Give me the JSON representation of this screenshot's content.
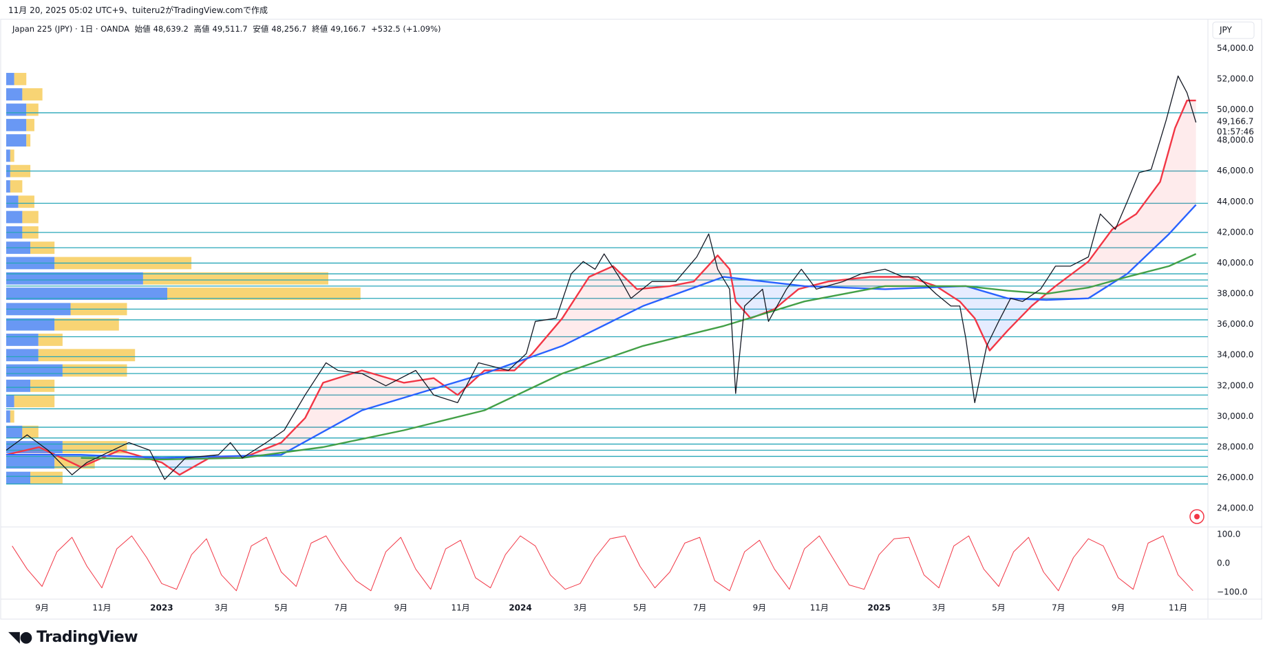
{
  "header": {
    "attribution": "11月 20, 2025 05:02 UTC+9、tuiteru2がTradingView.comで作成",
    "symbol": "Japan 225 (JPY) · 1日 · OANDA",
    "ohlc": [
      {
        "label": "始値",
        "value": "48,639.2"
      },
      {
        "label": "高値",
        "value": "49,511.7"
      },
      {
        "label": "安値",
        "value": "48,256.7"
      },
      {
        "label": "終値",
        "value": "49,166.7"
      }
    ],
    "change": "+532.5 (+1.09%)"
  },
  "chart_data": [
    {
      "type": "line",
      "currency": "JPY",
      "color": "#131722",
      "x": [
        -1.2,
        -0.5,
        0.2,
        1.0,
        1.5,
        2.9,
        3.6,
        4.1,
        4.8,
        5.9,
        6.3,
        6.7,
        7.5,
        8.1,
        8.8,
        9.5,
        9.9,
        10.7,
        11.5,
        12.5,
        13.1,
        13.9,
        14.6,
        15.6,
        16.2,
        16.5,
        17.2,
        17.7,
        18.1,
        18.5,
        18.8,
        19.3,
        19.7,
        20.4,
        21.2,
        21.9,
        22.3,
        22.6,
        23.0,
        23.2,
        23.5,
        24.1,
        24.3,
        24.9,
        25.4,
        25.9,
        26.8,
        27.4,
        28.2,
        28.8,
        29.3,
        29.9,
        30.4,
        30.7,
        30.9,
        31.2,
        31.6,
        32.0,
        32.4,
        32.8,
        33.4,
        33.9,
        34.4,
        35.0,
        35.4,
        35.9,
        36.3,
        36.7,
        37.1,
        37.4,
        37.6,
        38.0,
        38.3,
        38.6
      ],
      "values": [
        27800,
        28800,
        27800,
        26200,
        27000,
        28300,
        27800,
        25900,
        27300,
        27500,
        28300,
        27300,
        28300,
        29100,
        31400,
        33500,
        33000,
        32800,
        32000,
        33000,
        31400,
        30900,
        33500,
        33000,
        34100,
        36200,
        36400,
        39300,
        40100,
        39600,
        40600,
        39100,
        37700,
        38800,
        38800,
        40400,
        41900,
        39600,
        38300,
        31500,
        37200,
        38300,
        36200,
        38300,
        39600,
        38300,
        38800,
        39300,
        39600,
        39100,
        39100,
        38000,
        37200,
        37200,
        35100,
        30900,
        34600,
        36200,
        37700,
        37500,
        38300,
        39800,
        39800,
        40400,
        43200,
        42200,
        44000,
        45900,
        46100,
        48000,
        49300,
        52200,
        51100,
        49166.7
      ],
      "series": [
        {
          "color": "#f23645",
          "x": [
            -1.2,
            -0.1,
            1.3,
            2.6,
            4.0,
            4.6,
            5.6,
            6.7,
            8.0,
            8.8,
            9.4,
            10.7,
            12.1,
            13.1,
            13.9,
            14.8,
            15.8,
            16.4,
            17.4,
            18.3,
            19.1,
            19.9,
            21.0,
            21.8,
            22.6,
            23.0,
            23.2,
            23.7,
            24.5,
            25.3,
            26.3,
            27.7,
            29.0,
            29.9,
            30.7,
            31.2,
            31.7,
            32.3,
            33.1,
            33.9,
            35.0,
            35.8,
            36.6,
            37.4,
            37.9,
            38.3,
            38.6
          ],
          "values": [
            27500,
            28000,
            26700,
            27800,
            27000,
            26200,
            27300,
            27300,
            28300,
            29900,
            32200,
            33000,
            32200,
            32500,
            31400,
            33000,
            33000,
            34100,
            36400,
            39100,
            39800,
            38300,
            38500,
            38800,
            40500,
            39600,
            37500,
            36400,
            37000,
            38300,
            38800,
            39100,
            39100,
            38500,
            37500,
            36400,
            34300,
            35600,
            37200,
            38500,
            40100,
            42200,
            43200,
            45300,
            48800,
            50600,
            50600
          ]
        },
        {
          "color": "#2962ff",
          "x": [
            -1.2,
            1.3,
            4.0,
            8.0,
            10.7,
            14.8,
            17.4,
            20.1,
            22.8,
            25.5,
            28.2,
            30.9,
            32.3,
            33.6,
            35.0,
            36.3,
            37.7,
            38.6
          ],
          "values": [
            27500,
            27500,
            27300,
            27500,
            30400,
            32800,
            34600,
            37200,
            39100,
            38500,
            38300,
            38500,
            37700,
            37600,
            37700,
            39300,
            41900,
            43800
          ]
        },
        {
          "color": "#43a047",
          "x": [
            1.3,
            4.0,
            6.7,
            9.4,
            12.1,
            14.8,
            17.4,
            20.1,
            22.8,
            25.5,
            28.2,
            30.9,
            32.3,
            33.6,
            35.0,
            36.3,
            37.7,
            38.6
          ],
          "values": [
            27300,
            27200,
            27300,
            28000,
            29100,
            30400,
            32800,
            34600,
            35900,
            37500,
            38500,
            38500,
            38200,
            38000,
            38400,
            39100,
            39800,
            40600
          ]
        }
      ],
      "levels": [
        49800,
        46000,
        43900,
        42000,
        41000,
        40000,
        39300,
        38900,
        38500,
        37700,
        37000,
        36300,
        35200,
        33900,
        33200,
        32800,
        31900,
        31400,
        30500,
        29300,
        28600,
        28200,
        27800,
        27400,
        26700,
        26100,
        25600
      ],
      "level_color": "#26a6b8",
      "volume_profile": {
        "rows": [
          52000,
          51000,
          50000,
          49000,
          48000,
          47000,
          46000,
          45000,
          44000,
          43000,
          42000,
          41000,
          40000,
          39000,
          38000,
          37000,
          36000,
          35000,
          34000,
          33000,
          32000,
          31000,
          30000,
          29000,
          28000,
          27000,
          26000
        ],
        "series": [
          {
            "color": "#4f86f2",
            "values": [
              10,
              20,
              25,
              25,
              25,
              5,
              5,
              5,
              15,
              20,
              20,
              30,
              60,
              170,
              200,
              80,
              60,
              40,
              40,
              70,
              30,
              10,
              5,
              20,
              70,
              60,
              30
            ]
          },
          {
            "color": "#f7cc5c",
            "values": [
              15,
              25,
              15,
              10,
              5,
              5,
              25,
              15,
              20,
              20,
              20,
              30,
              170,
              230,
              240,
              70,
              80,
              30,
              120,
              80,
              30,
              50,
              5,
              20,
              80,
              50,
              40
            ]
          }
        ]
      },
      "ylim": [
        22800,
        54550
      ],
      "yticks": [
        {
          "value": 24000,
          "label": "24,000.0"
        },
        {
          "value": 26000,
          "label": "26,000.0"
        },
        {
          "value": 28000,
          "label": "28,000.0"
        },
        {
          "value": 30000,
          "label": "30,000.0"
        },
        {
          "value": 32000,
          "label": "32,000.0"
        },
        {
          "value": 34000,
          "label": "34,000.0"
        },
        {
          "value": 36000,
          "label": "36,000.0"
        },
        {
          "value": 38000,
          "label": "38,000.0"
        },
        {
          "value": 40000,
          "label": "40,000.0"
        },
        {
          "value": 42000,
          "label": "42,000.0"
        },
        {
          "value": 44000,
          "label": "44,000.0"
        },
        {
          "value": 46000,
          "label": "46,000.0"
        },
        {
          "value": 48000,
          "label": "48,000.0"
        },
        {
          "value": 50000,
          "label": "50,000.0"
        },
        {
          "value": 52000,
          "label": "52,000.0"
        },
        {
          "value": 54000,
          "label": "54,000.0"
        }
      ],
      "last_price": {
        "value": 49166.7,
        "label": "49,166.7"
      },
      "countdown": "01:57:46",
      "xlim": [
        -1.2,
        39.0
      ]
    },
    {
      "type": "line",
      "color": "#f23645",
      "x": [
        -1,
        -0.5,
        0,
        0.5,
        1,
        1.5,
        2,
        2.5,
        3,
        3.5,
        4,
        4.5,
        5,
        5.5,
        6,
        6.5,
        7,
        7.5,
        8,
        8.5,
        9,
        9.5,
        10,
        10.5,
        11,
        11.5,
        12,
        12.5,
        13,
        13.5,
        14,
        14.5,
        15,
        15.5,
        16,
        16.5,
        17,
        17.5,
        18,
        18.5,
        19,
        19.5,
        20,
        20.5,
        21,
        21.5,
        22,
        22.5,
        23,
        23.5,
        24,
        24.5,
        25,
        25.5,
        26,
        26.5,
        27,
        27.5,
        28,
        28.5,
        29,
        29.5,
        30,
        30.5,
        31,
        31.5,
        32,
        32.5,
        33,
        33.5,
        34,
        34.5,
        35,
        35.5,
        36,
        36.5,
        37,
        37.5,
        38,
        38.5
      ],
      "values": [
        60,
        -20,
        -80,
        40,
        90,
        -10,
        -85,
        50,
        95,
        20,
        -70,
        -90,
        30,
        85,
        -40,
        -95,
        60,
        90,
        -30,
        -80,
        70,
        95,
        10,
        -60,
        -95,
        40,
        90,
        -20,
        -90,
        50,
        80,
        -50,
        -85,
        30,
        95,
        60,
        -40,
        -90,
        -70,
        20,
        85,
        95,
        -10,
        -85,
        -30,
        70,
        90,
        -60,
        -95,
        40,
        80,
        -20,
        -90,
        50,
        95,
        10,
        -75,
        -90,
        30,
        85,
        90,
        -40,
        -85,
        60,
        95,
        -20,
        -80,
        40,
        90,
        -30,
        -95,
        20,
        85,
        60,
        -50,
        -90,
        70,
        95,
        -40,
        -95
      ],
      "ylim": [
        -124,
        126
      ],
      "yticks": [
        {
          "value": 100,
          "label": "100.0"
        },
        {
          "value": 0,
          "label": "0.0"
        },
        {
          "value": -100,
          "label": "−100.0"
        }
      ],
      "xlim": [
        -1.2,
        39.0
      ],
      "xticks": [
        {
          "value": 0,
          "label": "9月"
        },
        {
          "value": 2,
          "label": "11月"
        },
        {
          "value": 4,
          "label": "2023"
        },
        {
          "value": 6,
          "label": "3月"
        },
        {
          "value": 8,
          "label": "5月"
        },
        {
          "value": 10,
          "label": "7月"
        },
        {
          "value": 12,
          "label": "9月"
        },
        {
          "value": 14,
          "label": "11月"
        },
        {
          "value": 16,
          "label": "2024"
        },
        {
          "value": 18,
          "label": "3月"
        },
        {
          "value": 20,
          "label": "5月"
        },
        {
          "value": 22,
          "label": "7月"
        },
        {
          "value": 24,
          "label": "9月"
        },
        {
          "value": 26,
          "label": "11月"
        },
        {
          "value": 28,
          "label": "2025"
        },
        {
          "value": 30,
          "label": "3月"
        },
        {
          "value": 32,
          "label": "5月"
        },
        {
          "value": 34,
          "label": "7月"
        },
        {
          "value": 36,
          "label": "9月"
        },
        {
          "value": 38,
          "label": "11月"
        }
      ]
    }
  ],
  "footer": {
    "logo": "TradingView"
  }
}
